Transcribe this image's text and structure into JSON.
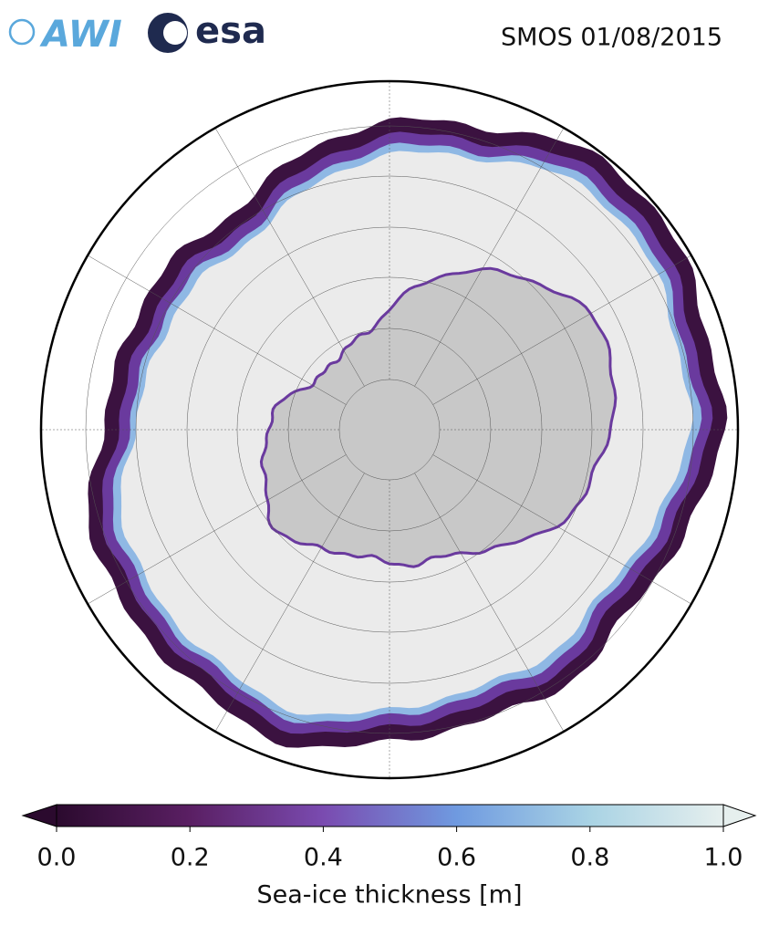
{
  "logos": {
    "left": "AWI",
    "right": "esa"
  },
  "title": "SMOS 01/08/2015",
  "colorbar": {
    "label": "Sea-ice thickness [m]",
    "lim": [
      0,
      1
    ],
    "ticks": [
      {
        "value": 0,
        "label": "0.0"
      },
      {
        "value": 0.2,
        "label": "0.2"
      },
      {
        "value": 0.4,
        "label": "0.4"
      },
      {
        "value": 0.6,
        "label": "0.6"
      },
      {
        "value": 0.8,
        "label": "0.8"
      },
      {
        "value": 1,
        "label": "1.0"
      }
    ],
    "colors": [
      "#2b0a2e",
      "#5a1f63",
      "#7a4bb0",
      "#6f9ae0",
      "#a9d3e4",
      "#e6efee"
    ]
  }
}
